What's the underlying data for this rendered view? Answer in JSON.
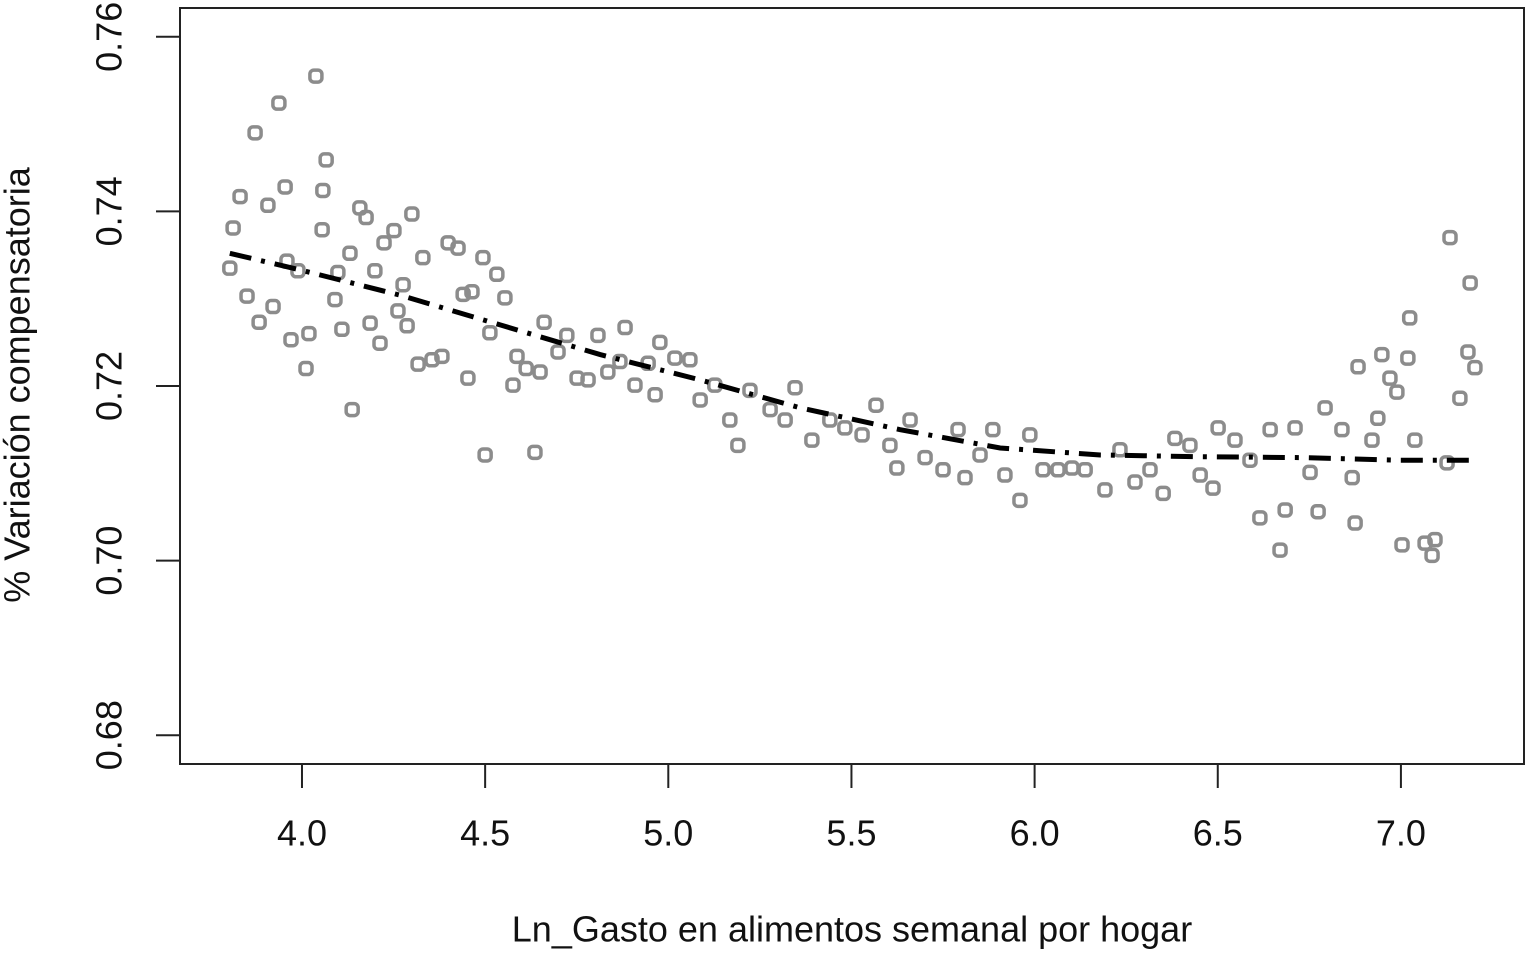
{
  "chart_data": {
    "type": "scatter",
    "xlabel": "Ln_Gasto en alimentos semanal por hogar",
    "ylabel": "% Variación compensatoria",
    "xlim": [
      3.667,
      7.336
    ],
    "ylim": [
      0.6767,
      0.7633
    ],
    "xticks": [
      {
        "value": 4,
        "label": "4.0"
      },
      4.5,
      {
        "value": 5,
        "label": "5.0"
      },
      5.5,
      {
        "value": 6,
        "label": "6.0"
      },
      6.5,
      {
        "value": 7,
        "label": "7.0"
      }
    ],
    "yticks": [
      0.68,
      {
        "value": 0.7,
        "label": "0.70"
      },
      0.72,
      0.74,
      0.76
    ],
    "series": [
      {
        "style": "points",
        "color": "#8c8c8c",
        "x": [
          3.803,
          3.812,
          3.831,
          3.85,
          3.872,
          3.883,
          3.907,
          3.921,
          3.937,
          3.954,
          3.959,
          3.97,
          3.989,
          4.011,
          4.019,
          4.038,
          4.055,
          4.057,
          4.066,
          4.09,
          4.098,
          4.109,
          4.131,
          4.137,
          4.158,
          4.175,
          4.186,
          4.199,
          4.213,
          4.224,
          4.251,
          4.262,
          4.276,
          4.287,
          4.3,
          4.317,
          4.33,
          4.355,
          4.382,
          4.399,
          4.426,
          4.44,
          4.453,
          4.464,
          4.494,
          4.5,
          4.513,
          4.532,
          4.554,
          4.576,
          4.587,
          4.612,
          4.636,
          4.65,
          4.661,
          4.699,
          4.723,
          4.751,
          4.781,
          4.808,
          4.835,
          4.868,
          4.882,
          4.909,
          4.945,
          4.964,
          4.977,
          5.018,
          5.059,
          5.087,
          5.127,
          5.168,
          5.19,
          5.223,
          5.278,
          5.319,
          5.346,
          5.392,
          5.441,
          5.482,
          5.529,
          5.567,
          5.605,
          5.624,
          5.66,
          5.701,
          5.75,
          5.791,
          5.81,
          5.851,
          5.886,
          5.919,
          5.96,
          5.987,
          6.023,
          6.064,
          6.102,
          6.138,
          6.192,
          6.233,
          6.274,
          6.315,
          6.351,
          6.383,
          6.424,
          6.452,
          6.487,
          6.501,
          6.547,
          6.588,
          6.615,
          6.643,
          6.67,
          6.684,
          6.711,
          6.752,
          6.774,
          6.793,
          6.839,
          6.867,
          6.875,
          6.883,
          6.921,
          6.937,
          6.948,
          6.97,
          6.989,
          7.003,
          7.019,
          7.024,
          7.038,
          7.066,
          7.085,
          7.093,
          7.126,
          7.134,
          7.161,
          7.183,
          7.189,
          7.202
        ],
        "values": [
          0.7335,
          0.7381,
          0.7417,
          0.7303,
          0.749,
          0.7273,
          0.7407,
          0.7291,
          0.7524,
          0.7428,
          0.7343,
          0.7253,
          0.7332,
          0.722,
          0.726,
          0.7555,
          0.7379,
          0.7424,
          0.7459,
          0.7299,
          0.733,
          0.7265,
          0.7352,
          0.7173,
          0.7404,
          0.7393,
          0.7272,
          0.7332,
          0.7249,
          0.7364,
          0.7378,
          0.7286,
          0.7316,
          0.7269,
          0.7397,
          0.7225,
          0.7347,
          0.723,
          0.7234,
          0.7364,
          0.7358,
          0.7305,
          0.7209,
          0.7308,
          0.7347,
          0.7121,
          0.7261,
          0.7328,
          0.7301,
          0.7201,
          0.7234,
          0.722,
          0.7124,
          0.7216,
          0.7273,
          0.7239,
          0.7258,
          0.7209,
          0.7207,
          0.7258,
          0.7216,
          0.7228,
          0.7267,
          0.7201,
          0.7226,
          0.719,
          0.725,
          0.7232,
          0.723,
          0.7184,
          0.7201,
          0.7161,
          0.7132,
          0.7195,
          0.7173,
          0.7161,
          0.7198,
          0.7138,
          0.7161,
          0.7152,
          0.7144,
          0.7178,
          0.7132,
          0.7106,
          0.7161,
          0.7118,
          0.7104,
          0.715,
          0.7095,
          0.7121,
          0.715,
          0.7098,
          0.7069,
          0.7144,
          0.7104,
          0.7104,
          0.7106,
          0.7104,
          0.7081,
          0.7127,
          0.709,
          0.7104,
          0.7077,
          0.714,
          0.7132,
          0.7098,
          0.7083,
          0.7152,
          0.7138,
          0.7115,
          0.7049,
          0.715,
          0.7012,
          0.7058,
          0.7152,
          0.7101,
          0.7056,
          0.7175,
          0.715,
          0.7095,
          0.7043,
          0.7222,
          0.7138,
          0.7163,
          0.7236,
          0.7209,
          0.7193,
          0.7018,
          0.7232,
          0.7278,
          0.7138,
          0.702,
          0.7006,
          0.7024,
          0.7112,
          0.737,
          0.7186,
          0.7239,
          0.7318,
          0.7221
        ]
      },
      {
        "style": "line",
        "dash": "dashdot",
        "color": "#000000",
        "x": [
          3.803,
          3.995,
          4.268,
          4.541,
          4.814,
          5.087,
          5.36,
          5.633,
          5.906,
          6.179,
          6.452,
          6.725,
          6.998,
          7.21
        ],
        "values": [
          0.7352,
          0.7333,
          0.7304,
          0.727,
          0.7236,
          0.7207,
          0.7175,
          0.715,
          0.7129,
          0.7121,
          0.7119,
          0.7118,
          0.7115,
          0.7115
        ]
      }
    ]
  }
}
